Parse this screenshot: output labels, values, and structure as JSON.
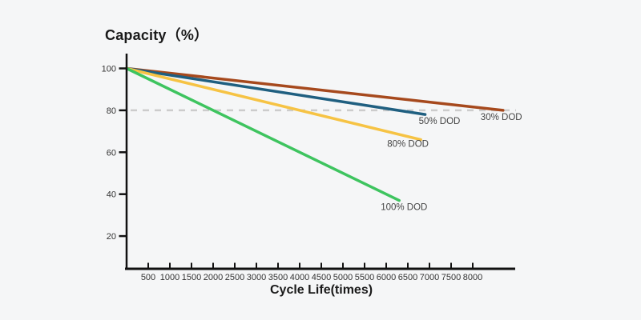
{
  "page": {
    "background_color": "#f5f6f7"
  },
  "chart_data": {
    "type": "line",
    "title": "Capacity（%）",
    "xlabel": "Cycle Life(times)",
    "ylabel": "",
    "x_ticks": [
      500,
      1000,
      1500,
      2000,
      2500,
      3000,
      3500,
      4000,
      4500,
      5000,
      5500,
      6000,
      6500,
      7000,
      7500,
      8000
    ],
    "y_ticks": [
      100,
      80,
      60,
      40,
      20
    ],
    "xlim": [
      0,
      9000
    ],
    "ylim": [
      0,
      107
    ],
    "grid": false,
    "legend_position": "inline-labels-at-line-ends",
    "axis_color": "#111111",
    "tick_label_color": "#333333",
    "series_label_color": "#444444",
    "reference_line": {
      "y": 80,
      "style": "dashed",
      "color": "#cccccc"
    },
    "series": [
      {
        "name": "30% DOD",
        "color": "#a6491d",
        "points": [
          [
            0,
            100
          ],
          [
            8700,
            80
          ]
        ],
        "label_dx": -28,
        "label_dy": 12
      },
      {
        "name": "50% DOD",
        "color": "#1f5f80",
        "points": [
          [
            0,
            100
          ],
          [
            6900,
            78
          ]
        ],
        "label_dx": -8,
        "label_dy": 12
      },
      {
        "name": "80% DOD",
        "color": "#f6c344",
        "points": [
          [
            0,
            100
          ],
          [
            6800,
            66
          ]
        ],
        "label_dx": -42,
        "label_dy": 9
      },
      {
        "name": "100% DOD",
        "color": "#3ec45f",
        "points": [
          [
            0,
            100
          ],
          [
            6300,
            37
          ]
        ],
        "label_dx": -23,
        "label_dy": 12
      }
    ]
  }
}
